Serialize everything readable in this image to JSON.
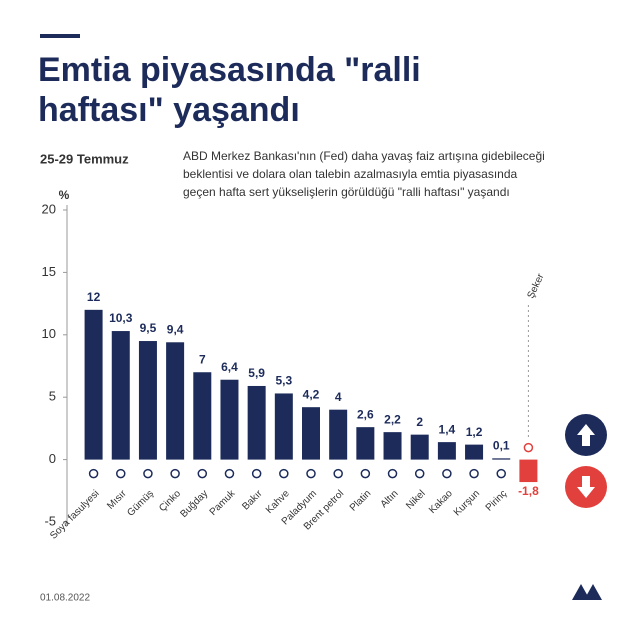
{
  "chart_data": {
    "type": "bar",
    "title_lines": [
      "Emtia piyasasında \"ralli",
      "haftası\" yaşandı"
    ],
    "subtitle": "25-29 Temmuz",
    "description_lines": [
      "ABD Merkez Bankası'nın (Fed) daha yavaş faiz artışına gidebileceği",
      "beklentisi ve dolara olan talebin azalmasıyla emtia piyasasında",
      "geçen hafta sert yükselişlerin görüldüğü \"ralli haftası\" yaşandı"
    ],
    "y_label": "%",
    "categories": [
      "Soya fasulyesi",
      "Mısır",
      "Gümüş",
      "Çinko",
      "Buğday",
      "Pamuk",
      "Bakır",
      "Kahve",
      "Paladyum",
      "Brent petrol",
      "Platin",
      "Altın",
      "Nikel",
      "Kakao",
      "Kurşun",
      "Pirinç",
      "Şeker"
    ],
    "values": [
      12,
      10.3,
      9.5,
      9.4,
      7,
      6.4,
      5.9,
      5.3,
      4.2,
      4,
      2.6,
      2.2,
      2,
      1.4,
      1.2,
      0.1,
      -1.8
    ],
    "value_labels": [
      "12",
      "10,3",
      "9,5",
      "9,4",
      "7",
      "6,4",
      "5,9",
      "5,3",
      "4,2",
      "4",
      "2,6",
      "2,2",
      "2",
      "1,4",
      "1,2",
      "0,1",
      "-1,8"
    ],
    "color": "#1c2b5a",
    "negative_color": "#e2403c",
    "ylim": [
      -5,
      20
    ],
    "yticks": [
      -5,
      0,
      5,
      10,
      15,
      20
    ],
    "date": "01.08.2022"
  }
}
